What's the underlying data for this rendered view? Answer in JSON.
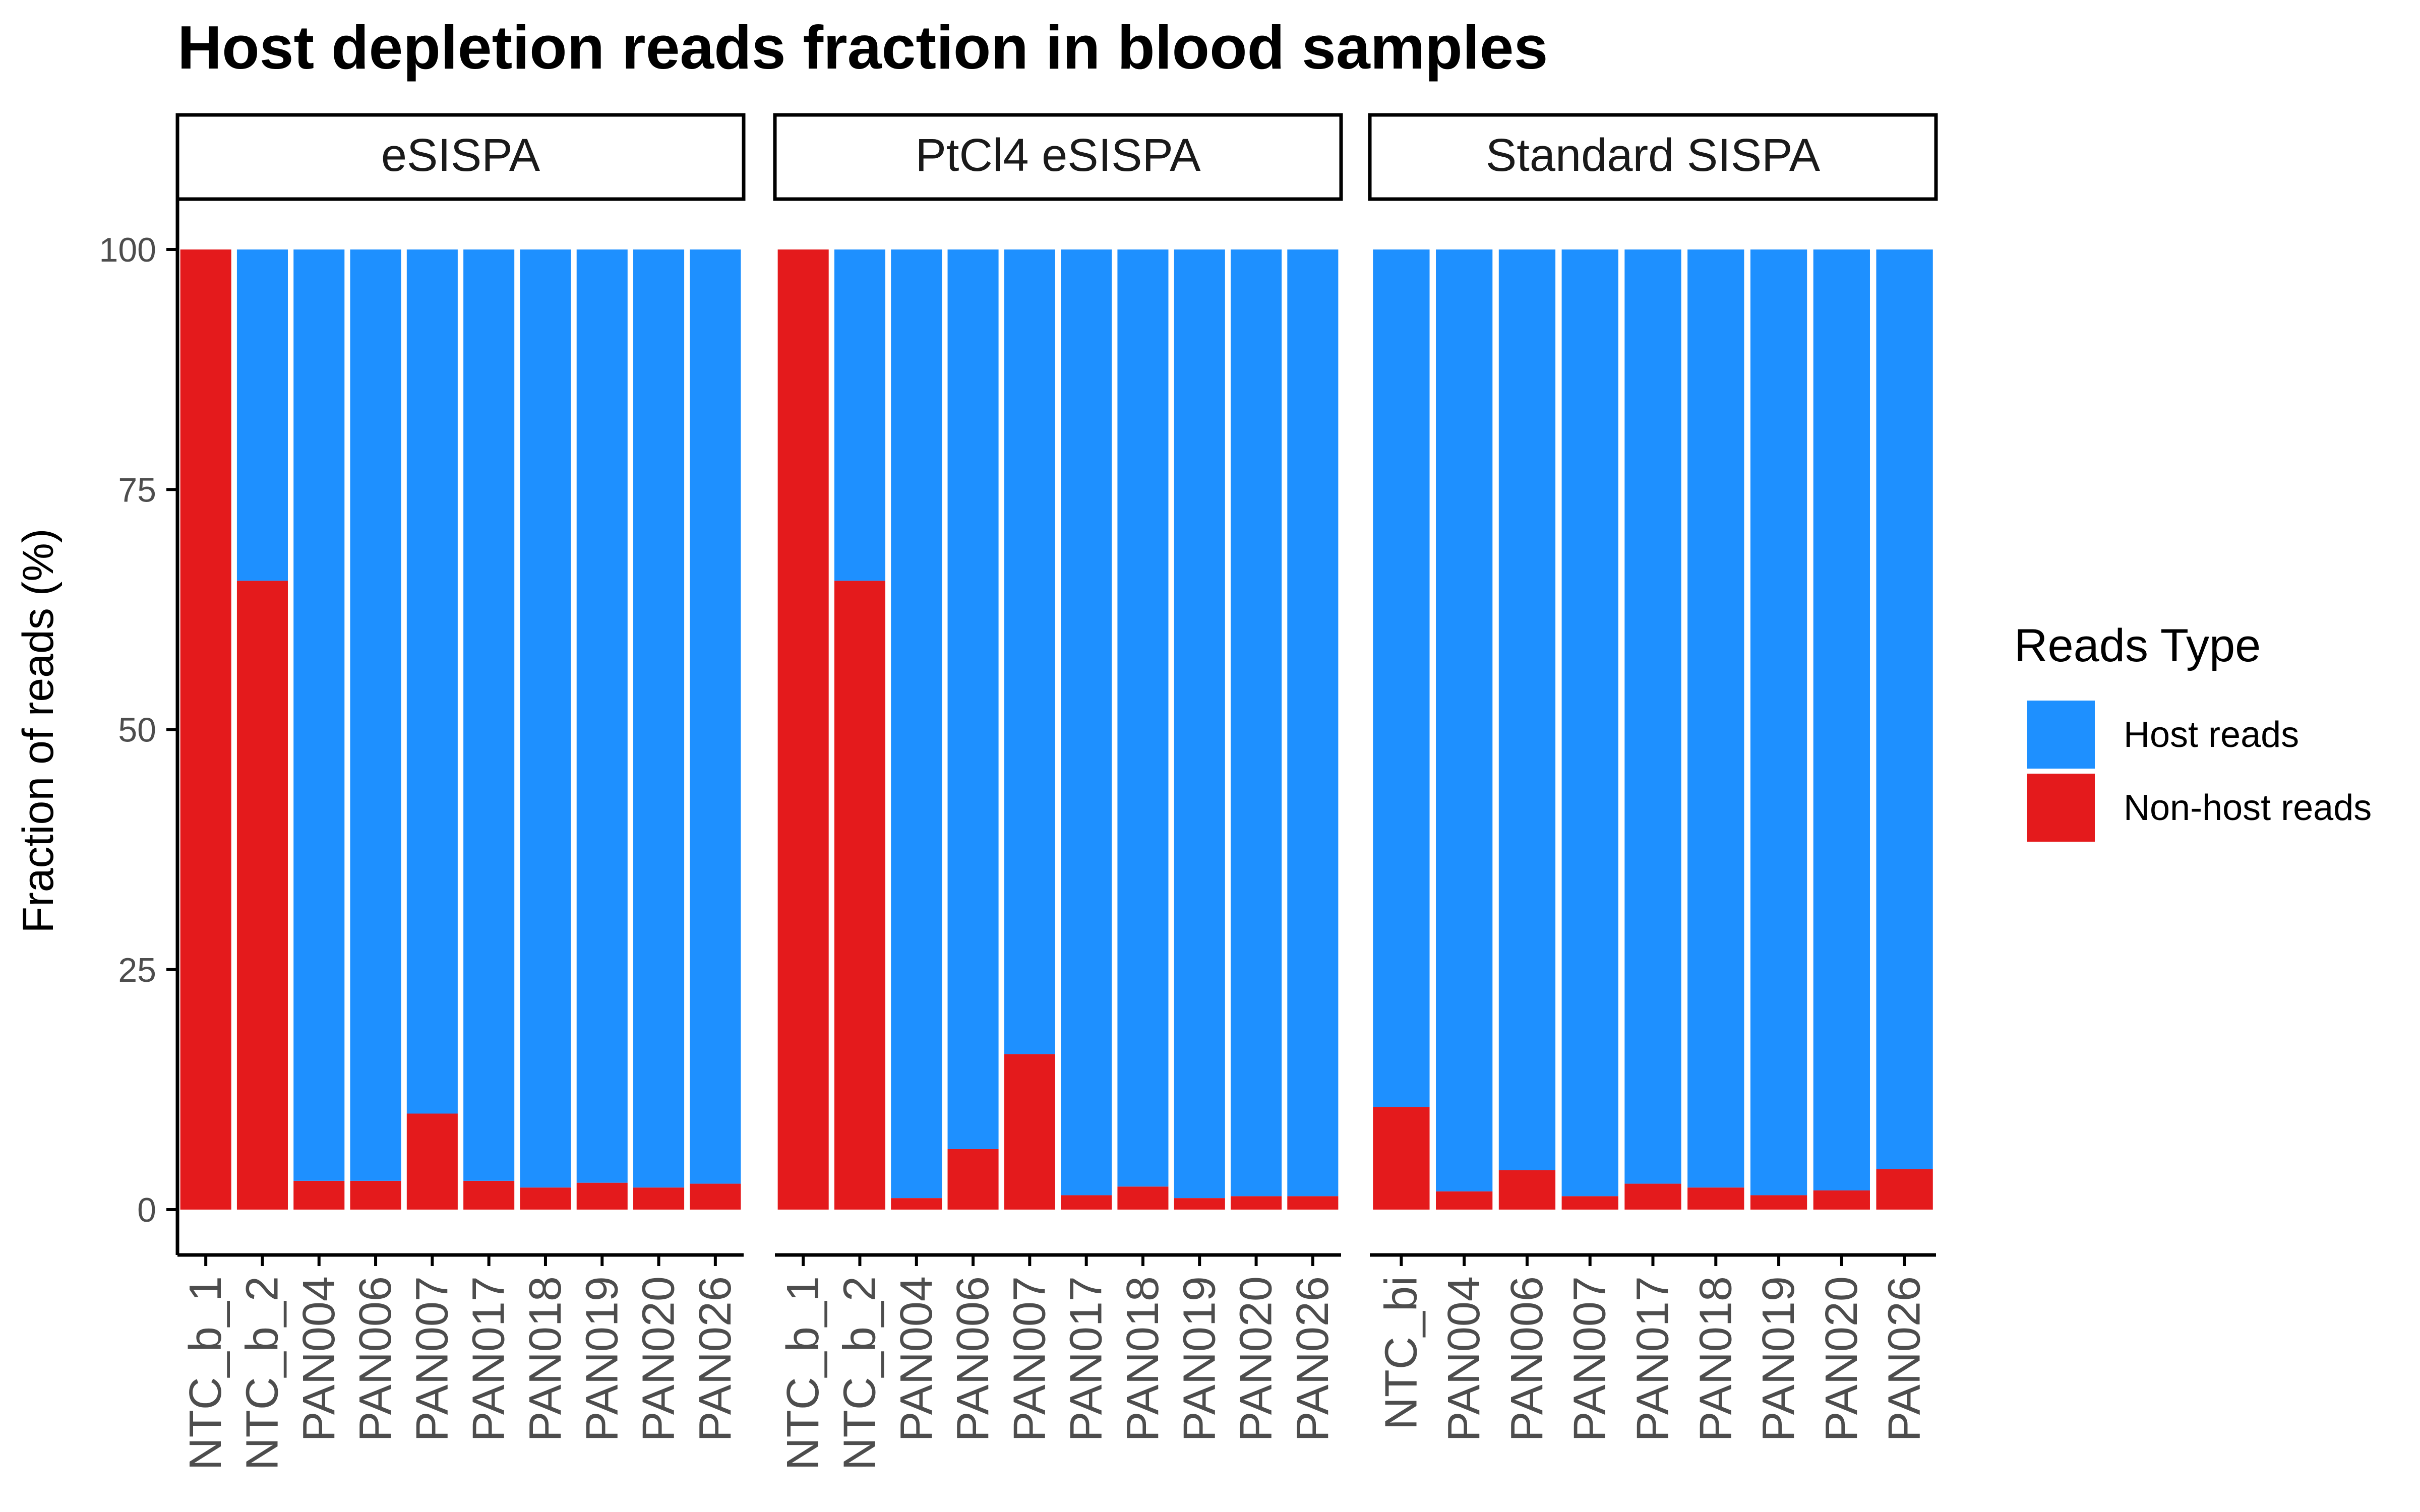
{
  "colors": {
    "host": "#1E90FF",
    "nonhost": "#E41A1C",
    "axis": "#000000",
    "tick_label": "#4d4d4d",
    "strip_border": "#000000"
  },
  "chart_data": {
    "type": "bar",
    "stacked": true,
    "title": "Host depletion reads fraction in blood samples",
    "ylabel": "Fraction of reads (%)",
    "xlabel": "",
    "ylim": [
      0,
      100
    ],
    "yticks": [
      "0",
      "25",
      "50",
      "75",
      "100"
    ],
    "grid": false,
    "legend": {
      "title": "Reads Type",
      "position": "right",
      "entries": [
        {
          "label": "Host reads",
          "color": "#1E90FF"
        },
        {
          "label": "Non-host reads",
          "color": "#E41A1C"
        }
      ]
    },
    "facets": [
      {
        "label": "eSISPA",
        "categories": [
          "NTC_b_1",
          "NTC_b_2",
          "PAN004",
          "PAN006",
          "PAN007",
          "PAN017",
          "PAN018",
          "PAN019",
          "PAN020",
          "PAN026"
        ],
        "series": [
          {
            "name": "Non-host reads",
            "values": [
              100,
              65.5,
              3.0,
              3.0,
              10.0,
              3.0,
              2.3,
              2.8,
              2.3,
              2.7
            ]
          },
          {
            "name": "Host reads",
            "values": [
              0,
              34.5,
              97.0,
              97.0,
              90.0,
              97.0,
              97.7,
              97.2,
              97.7,
              97.3
            ]
          }
        ]
      },
      {
        "label": "PtCl4 eSISPA",
        "categories": [
          "NTC_b_1",
          "NTC_b_2",
          "PAN004",
          "PAN006",
          "PAN007",
          "PAN017",
          "PAN018",
          "PAN019",
          "PAN020",
          "PAN026"
        ],
        "series": [
          {
            "name": "Non-host reads",
            "values": [
              100,
              65.5,
              1.2,
              6.3,
              16.2,
              1.5,
              2.4,
              1.2,
              1.4,
              1.4
            ]
          },
          {
            "name": "Host reads",
            "values": [
              0,
              34.5,
              98.8,
              93.7,
              83.8,
              98.5,
              97.6,
              98.8,
              98.6,
              98.6
            ]
          }
        ]
      },
      {
        "label": "Standard SISPA",
        "categories": [
          "NTC_bi",
          "PAN004",
          "PAN006",
          "PAN007",
          "PAN017",
          "PAN018",
          "PAN019",
          "PAN020",
          "PAN026"
        ],
        "series": [
          {
            "name": "Non-host reads",
            "values": [
              10.7,
              1.9,
              4.1,
              1.4,
              2.7,
              2.3,
              1.5,
              2.0,
              4.2
            ]
          },
          {
            "name": "Host reads",
            "values": [
              89.3,
              98.1,
              95.9,
              98.6,
              97.3,
              97.7,
              98.5,
              98.0,
              95.8
            ]
          }
        ]
      }
    ]
  }
}
